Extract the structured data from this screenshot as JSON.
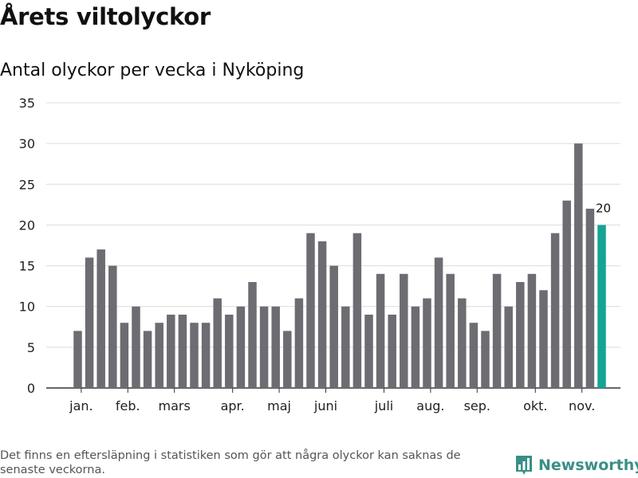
{
  "header": {
    "title": "Årets viltolyckor",
    "subtitle": "Antal olyckor per vecka i Nyköping"
  },
  "footer": {
    "note": "Det finns en eftersläpning i statistiken som gör att några olyckor kan saknas de senaste veckorna.",
    "brand": "Newsworthy",
    "brand_icon": "bar-chart-logo-icon",
    "brand_color": "#3a8f86"
  },
  "chart_data": {
    "type": "bar",
    "title": "Antal olyckor per vecka i Nyköping",
    "xlabel": "",
    "ylabel": "",
    "ylim": [
      0,
      35
    ],
    "yticks": [
      0,
      5,
      10,
      15,
      20,
      25,
      30,
      35
    ],
    "grid": true,
    "bar_color": "#6d6c72",
    "highlight_color": "#16a394",
    "highlight_index": 45,
    "highlight_label": "20",
    "x_tick_labels": [
      {
        "label": "jan.",
        "index": 0.3
      },
      {
        "label": "feb.",
        "index": 4.3
      },
      {
        "label": "mars",
        "index": 8.3
      },
      {
        "label": "apr.",
        "index": 13.3
      },
      {
        "label": "maj",
        "index": 17.3
      },
      {
        "label": "juni",
        "index": 21.3
      },
      {
        "label": "juli",
        "index": 26.3
      },
      {
        "label": "aug.",
        "index": 30.3
      },
      {
        "label": "sep.",
        "index": 34.3
      },
      {
        "label": "okt.",
        "index": 39.3
      },
      {
        "label": "nov.",
        "index": 43.3
      }
    ],
    "values": [
      7,
      16,
      17,
      15,
      8,
      10,
      7,
      8,
      9,
      9,
      8,
      8,
      11,
      9,
      10,
      13,
      10,
      10,
      7,
      11,
      19,
      18,
      15,
      10,
      19,
      9,
      14,
      9,
      14,
      10,
      11,
      16,
      14,
      11,
      8,
      7,
      14,
      10,
      13,
      14,
      12,
      19,
      23,
      30,
      22,
      20
    ]
  }
}
